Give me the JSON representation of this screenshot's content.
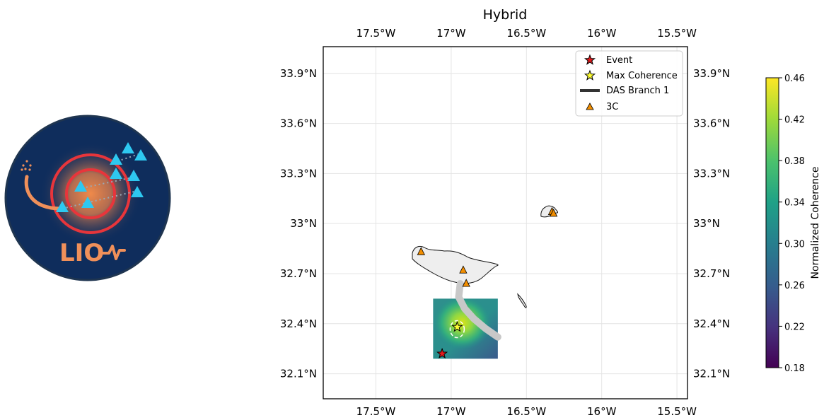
{
  "logo": {
    "text": "LIO"
  },
  "chart_data": {
    "type": "map",
    "title": "Hybrid",
    "lon_ticks": [
      -17.5,
      -17.0,
      -16.5,
      -16.0,
      -15.5
    ],
    "lon_tick_labels": [
      "17.5°W",
      "17°W",
      "16.5°W",
      "16°W",
      "15.5°W"
    ],
    "lat_ticks": [
      33.9,
      33.6,
      33.3,
      33.0,
      32.7,
      32.4,
      32.1
    ],
    "lat_tick_labels": [
      "33.9°N",
      "33.6°N",
      "33.3°N",
      "33°N",
      "32.7°N",
      "32.4°N",
      "32.1°N"
    ],
    "lon_range": [
      -17.85,
      -15.43
    ],
    "lat_range": [
      31.95,
      34.06
    ],
    "grid": true,
    "legend": {
      "placement": "top-right",
      "entries": [
        "Event",
        "Max Coherence",
        "DAS Branch 1",
        "3C"
      ]
    },
    "event": {
      "lon": -17.06,
      "lat": 32.22
    },
    "max_coherence": {
      "lon": -16.96,
      "lat": 32.38
    },
    "stations_3c": [
      {
        "lon": -17.2,
        "lat": 32.83
      },
      {
        "lon": -16.92,
        "lat": 32.72
      },
      {
        "lon": -16.9,
        "lat": 32.64
      },
      {
        "lon": -16.33,
        "lat": 33.07
      },
      {
        "lon": -16.32,
        "lat": 33.06
      }
    ],
    "das_cable": [
      [
        -16.94,
        32.64
      ],
      [
        -16.95,
        32.56
      ],
      [
        -16.91,
        32.49
      ],
      [
        -16.85,
        32.43
      ],
      [
        -16.77,
        32.37
      ],
      [
        -16.69,
        32.32
      ]
    ],
    "coherence_region": {
      "lon": [
        -17.12,
        -16.69
      ],
      "lat": [
        32.19,
        32.55
      ]
    },
    "colorbar": {
      "label": "Normalized Coherence",
      "min": 0.18,
      "max": 0.46,
      "ticks": [
        0.46,
        0.42,
        0.38,
        0.34,
        0.3,
        0.26,
        0.22,
        0.18
      ],
      "tick_labels": [
        "0.46",
        "0.42",
        "0.38",
        "0.34",
        "0.30",
        "0.26",
        "0.22",
        "0.18"
      ],
      "colormap": "viridis"
    },
    "colors": {
      "event": "#e31a1c",
      "max_coherence": "#ffff33",
      "das": "#333333",
      "station": "#f28e00",
      "land": "#eeeeee"
    }
  }
}
